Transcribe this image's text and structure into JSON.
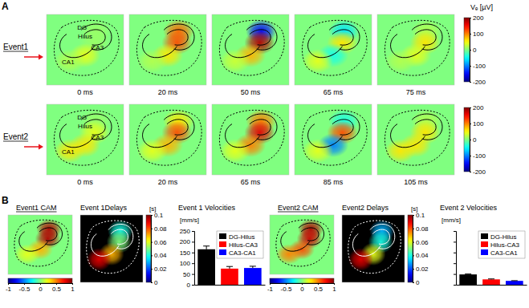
{
  "chart_data": [
    {
      "type": "bar",
      "title": "Event 1 Velocities",
      "y_label": "[mm/s]",
      "categories": [
        "DG-Hilus",
        "Hilus-CA3",
        "CA3-CA1"
      ],
      "values": [
        165,
        75,
        78
      ],
      "errors": [
        15,
        10,
        8
      ],
      "colors": [
        "#000000",
        "#ff0000",
        "#0000ff"
      ],
      "ylim": [
        0,
        250
      ],
      "yticks": [
        0,
        50,
        100,
        150,
        200,
        250
      ],
      "legend": "upper right",
      "tick_labels": "y"
    },
    {
      "type": "bar",
      "title": "Event 2 Velocities",
      "y_label": "[mm/s]",
      "categories": [
        "DG-Hilus",
        "Hilus-CA3",
        "CA3-CA1"
      ],
      "values": [
        48,
        25,
        18
      ],
      "errors": [
        2,
        2,
        1
      ],
      "colors": [
        "#000000",
        "#ff0000",
        "#0000ff"
      ],
      "ylim": [
        0,
        250
      ],
      "yticks": [
        0,
        50,
        100,
        150,
        200,
        250
      ],
      "legend": "upper right",
      "tick_labels": false
    }
  ],
  "figure": {
    "panel_labels": [
      "A",
      "B"
    ],
    "sites": [
      "DG",
      "Hilus",
      "CA3",
      "CA1"
    ],
    "voltage_map": {
      "colorbar_title": "Vₑ [µV]",
      "colorbar_range": [
        -200,
        200
      ],
      "colorbar_ticks": [
        -200,
        -100,
        0,
        100,
        200
      ],
      "events": [
        {
          "label": "Event1",
          "frames": [
            {
              "time": "0 ms",
              "values": [
                10,
                10,
                40,
                20
              ]
            },
            {
              "time": "20 ms",
              "values": [
                110,
                120,
                60,
                20
              ]
            },
            {
              "time": "50 ms",
              "values": [
                -150,
                180,
                80,
                30
              ]
            },
            {
              "time": "65 ms",
              "values": [
                -60,
                60,
                -40,
                40
              ]
            },
            {
              "time": "75 ms",
              "values": [
                20,
                60,
                40,
                20
              ]
            }
          ]
        },
        {
          "label": "Event2",
          "frames": [
            {
              "time": "0 ms",
              "values": [
                10,
                40,
                60,
                60
              ]
            },
            {
              "time": "20 ms",
              "values": [
                60,
                120,
                80,
                40
              ]
            },
            {
              "time": "65 ms",
              "values": [
                100,
                160,
                100,
                40
              ]
            },
            {
              "time": "85 ms",
              "values": [
                -40,
                120,
                -100,
                40
              ]
            },
            {
              "time": "105 ms",
              "values": [
                20,
                60,
                60,
                60
              ]
            }
          ]
        }
      ]
    },
    "cam": {
      "colorbar_range": [
        -1,
        1
      ],
      "colorbar_ticks": [
        -1,
        -0.5,
        0,
        0.5,
        1
      ]
    },
    "delays": {
      "colorbar_title": "[s]",
      "colorbar_range": [
        0,
        0.1
      ],
      "colorbar_ticks": [
        0,
        0.02,
        0.04,
        0.06,
        0.08,
        0.1
      ]
    },
    "event_panels": [
      {
        "cam_title": "Event1 CAM",
        "cam_values": [
          0.9,
          0.9,
          0.4,
          0.2
        ],
        "delays_title": "Event 1Delays",
        "delay_values": [
          0.04,
          0.05,
          0.07,
          0.09
        ]
      },
      {
        "cam_title": "Event2 CAM",
        "cam_values": [
          0.9,
          0.85,
          0.6,
          0.5
        ],
        "delays_title": "Event2 Delays",
        "delay_values": [
          0.03,
          0.04,
          0.06,
          0.09
        ]
      }
    ]
  }
}
